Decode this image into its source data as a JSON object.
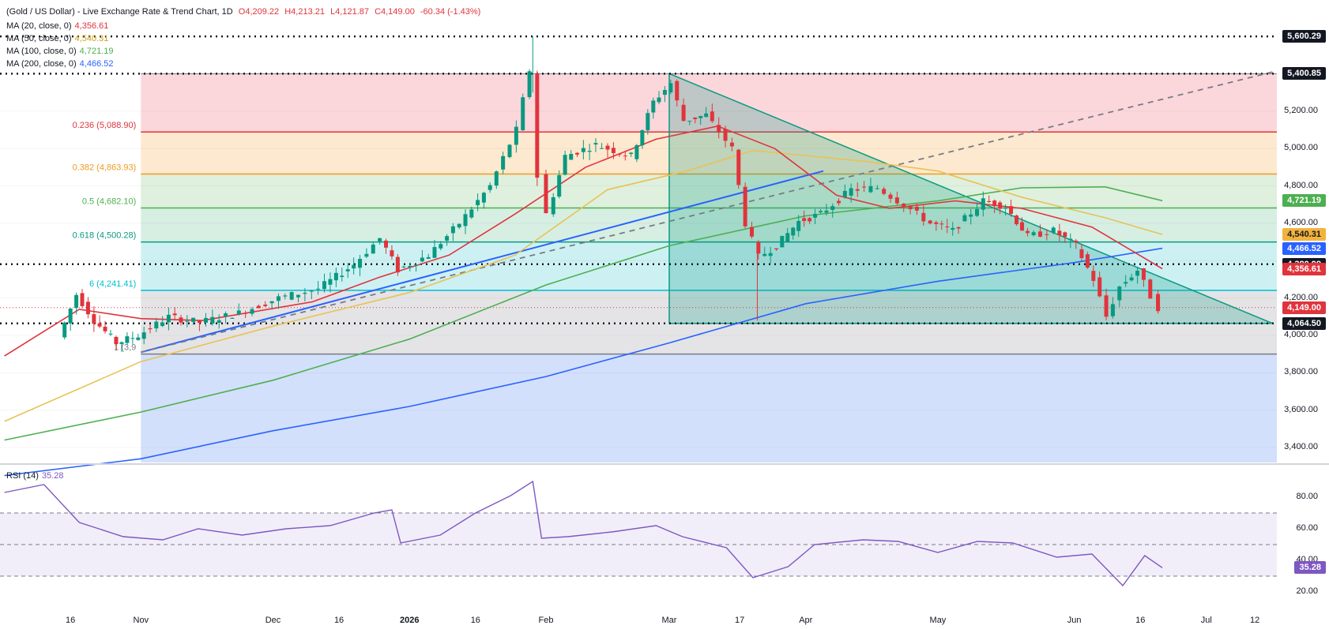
{
  "header": {
    "title": "(Gold / US Dollar) - Live Exchange Rate & Trend Chart, 1D",
    "open": "O4,209.22",
    "high": "H4,213.21",
    "low": "L4,121.87",
    "close": "C4,149.00",
    "change": "-60.34 (-1.43%)"
  },
  "ma_legend": [
    {
      "label": "MA (20, close, 0)",
      "value": "4,356.61",
      "color": "#e0343d"
    },
    {
      "label": "MA (50, close, 0)",
      "value": "4,540.31",
      "color": "#e8c255"
    },
    {
      "label": "MA (100, close, 0)",
      "value": "4,721.19",
      "color": "#4caf50"
    },
    {
      "label": "MA (200, close, 0)",
      "value": "4,466.52",
      "color": "#2962ff"
    }
  ],
  "price_tags": [
    {
      "value": "5,600.29",
      "price": 5600.29,
      "bg": "#131722"
    },
    {
      "value": "5,400.85",
      "price": 5400.85,
      "bg": "#131722"
    },
    {
      "value": "4,721.19",
      "price": 4721.19,
      "bg": "#4caf50"
    },
    {
      "value": "4,540.31",
      "price": 4540.31,
      "bg": "#f2b33d"
    },
    {
      "value": "4,466.52",
      "price": 4466.52,
      "bg": "#2962ff"
    },
    {
      "value": "4,380.98",
      "price": 4380.98,
      "bg": "#131722"
    },
    {
      "value": "4,356.61",
      "price": 4356.61,
      "bg": "#e0343d"
    },
    {
      "value": "4,149.00",
      "price": 4149.0,
      "bg": "#e0343d"
    },
    {
      "value": "4,064.50",
      "price": 4064.5,
      "bg": "#131722"
    }
  ],
  "fib_levels": [
    {
      "label": "0.236 (5,088.90)",
      "price": 5088.9,
      "color": "#e0343d"
    },
    {
      "label": "0.382 (4,863.93)",
      "price": 4863.93,
      "color": "#f09a1e"
    },
    {
      "label": "0.5 (4,682.10)",
      "price": 4682.1,
      "color": "#4caf50"
    },
    {
      "label": "0.618 (4,500.28)",
      "price": 4500.28,
      "color": "#089981"
    },
    {
      "label": "6 (4,241.41)",
      "price": 4241.41,
      "color": "#00bcd4"
    },
    {
      "label": "1 (3,9",
      "price": 3900,
      "color": "#787b86"
    }
  ],
  "rsi": {
    "label": "RSI (14)",
    "value": "35.28",
    "color": "#7e57c2",
    "levels": [
      70,
      50,
      30
    ],
    "ticks": [
      "80.00",
      "60.00",
      "40.00",
      "20.00"
    ]
  },
  "chart_data": {
    "type": "candlestick",
    "title": "(Gold / US Dollar) - Live Exchange Rate & Trend Chart, 1D",
    "xlabel": "",
    "ylabel": "",
    "ylim": [
      3320,
      5660
    ],
    "y_ticks": [
      "5,200.00",
      "5,000.00",
      "4,800.00",
      "4,600.00",
      "4,200.00",
      "4,000.00",
      "3,800.00",
      "3,600.00",
      "3,400.00"
    ],
    "x_ticks": [
      "16",
      "Nov",
      "Dec",
      "16",
      "2026",
      "16",
      "Feb",
      "Mar",
      "17",
      "Apr",
      "May",
      "Jun",
      "16",
      "Jul",
      "12"
    ],
    "price_series": [
      {
        "date": "2025-10-14",
        "price": 3990
      },
      {
        "date": "2025-10-18",
        "price": 4220
      },
      {
        "date": "2025-10-22",
        "price": 4080
      },
      {
        "date": "2025-10-27",
        "price": 3960
      },
      {
        "date": "2025-11-01",
        "price": 4000
      },
      {
        "date": "2025-11-08",
        "price": 4100
      },
      {
        "date": "2025-11-15",
        "price": 4070
      },
      {
        "date": "2025-11-24",
        "price": 4120
      },
      {
        "date": "2025-12-03",
        "price": 4200
      },
      {
        "date": "2025-12-12",
        "price": 4250
      },
      {
        "date": "2025-12-20",
        "price": 4380
      },
      {
        "date": "2025-12-26",
        "price": 4520
      },
      {
        "date": "2025-12-30",
        "price": 4350
      },
      {
        "date": "2026-01-06",
        "price": 4430
      },
      {
        "date": "2026-01-13",
        "price": 4600
      },
      {
        "date": "2026-01-20",
        "price": 4800
      },
      {
        "date": "2026-01-26",
        "price": 5100
      },
      {
        "date": "2026-01-29",
        "price": 5420
      },
      {
        "date": "2026-01-31",
        "price": 4850
      },
      {
        "date": "2026-02-02",
        "price": 4650
      },
      {
        "date": "2026-02-06",
        "price": 4960
      },
      {
        "date": "2026-02-13",
        "price": 5020
      },
      {
        "date": "2026-02-21",
        "price": 4960
      },
      {
        "date": "2026-02-26",
        "price": 5250
      },
      {
        "date": "2026-03-02",
        "price": 5350
      },
      {
        "date": "2026-03-05",
        "price": 5150
      },
      {
        "date": "2026-03-10",
        "price": 5180
      },
      {
        "date": "2026-03-16",
        "price": 5000
      },
      {
        "date": "2026-03-19",
        "price": 4600
      },
      {
        "date": "2026-03-22",
        "price": 4420
      },
      {
        "date": "2026-03-26",
        "price": 4480
      },
      {
        "date": "2026-03-31",
        "price": 4610
      },
      {
        "date": "2026-04-05",
        "price": 4650
      },
      {
        "date": "2026-04-12",
        "price": 4780
      },
      {
        "date": "2026-04-18",
        "price": 4790
      },
      {
        "date": "2026-04-24",
        "price": 4700
      },
      {
        "date": "2026-04-30",
        "price": 4600
      },
      {
        "date": "2026-05-05",
        "price": 4560
      },
      {
        "date": "2026-05-12",
        "price": 4720
      },
      {
        "date": "2026-05-17",
        "price": 4690
      },
      {
        "date": "2026-05-22",
        "price": 4530
      },
      {
        "date": "2026-05-28",
        "price": 4560
      },
      {
        "date": "2026-06-02",
        "price": 4480
      },
      {
        "date": "2026-06-06",
        "price": 4300
      },
      {
        "date": "2026-06-09",
        "price": 4100
      },
      {
        "date": "2026-06-12",
        "price": 4260
      },
      {
        "date": "2026-06-16",
        "price": 4350
      },
      {
        "date": "2026-06-19",
        "price": 4210
      },
      {
        "date": "2026-06-21",
        "price": 4149
      }
    ],
    "ma_20": [
      {
        "date": "2025-10-01",
        "price": 3890
      },
      {
        "date": "2025-10-18",
        "price": 4140
      },
      {
        "date": "2025-11-01",
        "price": 4090
      },
      {
        "date": "2025-11-15",
        "price": 4080
      },
      {
        "date": "2025-12-10",
        "price": 4180
      },
      {
        "date": "2025-12-25",
        "price": 4310
      },
      {
        "date": "2026-01-10",
        "price": 4430
      },
      {
        "date": "2026-01-25",
        "price": 4650
      },
      {
        "date": "2026-02-10",
        "price": 4900
      },
      {
        "date": "2026-02-26",
        "price": 5050
      },
      {
        "date": "2026-03-12",
        "price": 5120
      },
      {
        "date": "2026-03-25",
        "price": 5000
      },
      {
        "date": "2026-04-08",
        "price": 4750
      },
      {
        "date": "2026-04-20",
        "price": 4680
      },
      {
        "date": "2026-05-05",
        "price": 4720
      },
      {
        "date": "2026-05-20",
        "price": 4680
      },
      {
        "date": "2026-06-05",
        "price": 4580
      },
      {
        "date": "2026-06-21",
        "price": 4356.61
      }
    ],
    "ma_50": [
      {
        "date": "2025-10-01",
        "price": 3540
      },
      {
        "date": "2025-11-01",
        "price": 3860
      },
      {
        "date": "2025-12-01",
        "price": 4050
      },
      {
        "date": "2026-01-01",
        "price": 4230
      },
      {
        "date": "2026-01-25",
        "price": 4430
      },
      {
        "date": "2026-02-15",
        "price": 4780
      },
      {
        "date": "2026-03-05",
        "price": 4880
      },
      {
        "date": "2026-03-20",
        "price": 4990
      },
      {
        "date": "2026-04-15",
        "price": 4930
      },
      {
        "date": "2026-05-01",
        "price": 4880
      },
      {
        "date": "2026-05-20",
        "price": 4740
      },
      {
        "date": "2026-06-08",
        "price": 4630
      },
      {
        "date": "2026-06-21",
        "price": 4540.31
      }
    ],
    "ma_100": [
      {
        "date": "2025-10-01",
        "price": 3440
      },
      {
        "date": "2025-11-01",
        "price": 3590
      },
      {
        "date": "2025-12-01",
        "price": 3760
      },
      {
        "date": "2026-01-01",
        "price": 3980
      },
      {
        "date": "2026-02-01",
        "price": 4270
      },
      {
        "date": "2026-03-01",
        "price": 4480
      },
      {
        "date": "2026-04-01",
        "price": 4640
      },
      {
        "date": "2026-05-01",
        "price": 4720
      },
      {
        "date": "2026-05-20",
        "price": 4790
      },
      {
        "date": "2026-06-08",
        "price": 4795
      },
      {
        "date": "2026-06-21",
        "price": 4721.19
      }
    ],
    "ma_200": [
      {
        "date": "2025-10-01",
        "price": 3250
      },
      {
        "date": "2025-11-01",
        "price": 3340
      },
      {
        "date": "2025-12-01",
        "price": 3490
      },
      {
        "date": "2026-01-01",
        "price": 3620
      },
      {
        "date": "2026-02-01",
        "price": 3780
      },
      {
        "date": "2026-03-01",
        "price": 3960
      },
      {
        "date": "2026-04-01",
        "price": 4170
      },
      {
        "date": "2026-05-01",
        "price": 4290
      },
      {
        "date": "2026-06-01",
        "price": 4390
      },
      {
        "date": "2026-06-21",
        "price": 4466.52
      }
    ],
    "rsi_series": [
      {
        "date": "2025-10-01",
        "value": 83
      },
      {
        "date": "2025-10-10",
        "value": 88
      },
      {
        "date": "2025-10-18",
        "value": 64
      },
      {
        "date": "2025-10-28",
        "value": 55
      },
      {
        "date": "2025-11-06",
        "value": 53
      },
      {
        "date": "2025-11-14",
        "value": 60
      },
      {
        "date": "2025-11-24",
        "value": 56
      },
      {
        "date": "2025-12-04",
        "value": 60
      },
      {
        "date": "2025-12-14",
        "value": 62
      },
      {
        "date": "2025-12-24",
        "value": 70
      },
      {
        "date": "2025-12-28",
        "value": 72
      },
      {
        "date": "2025-12-30",
        "value": 51
      },
      {
        "date": "2026-01-08",
        "value": 56
      },
      {
        "date": "2026-01-16",
        "value": 70
      },
      {
        "date": "2026-01-24",
        "value": 81
      },
      {
        "date": "2026-01-29",
        "value": 90
      },
      {
        "date": "2026-01-31",
        "value": 54
      },
      {
        "date": "2026-02-06",
        "value": 55
      },
      {
        "date": "2026-02-16",
        "value": 58
      },
      {
        "date": "2026-02-26",
        "value": 62
      },
      {
        "date": "2026-03-04",
        "value": 55
      },
      {
        "date": "2026-03-14",
        "value": 48
      },
      {
        "date": "2026-03-20",
        "value": 29
      },
      {
        "date": "2026-03-28",
        "value": 36
      },
      {
        "date": "2026-04-03",
        "value": 50
      },
      {
        "date": "2026-04-14",
        "value": 53
      },
      {
        "date": "2026-04-22",
        "value": 52
      },
      {
        "date": "2026-05-01",
        "value": 45
      },
      {
        "date": "2026-05-10",
        "value": 52
      },
      {
        "date": "2026-05-18",
        "value": 51
      },
      {
        "date": "2026-05-28",
        "value": 42
      },
      {
        "date": "2026-06-05",
        "value": 44
      },
      {
        "date": "2026-06-12",
        "value": 24
      },
      {
        "date": "2026-06-17",
        "value": 43
      },
      {
        "date": "2026-06-21",
        "value": 35.28
      }
    ],
    "triangle": {
      "apex_date": "2026-03-01",
      "apex_price": 5400.85,
      "base_price": 4064.5,
      "end_date": "2026-07-16"
    }
  }
}
